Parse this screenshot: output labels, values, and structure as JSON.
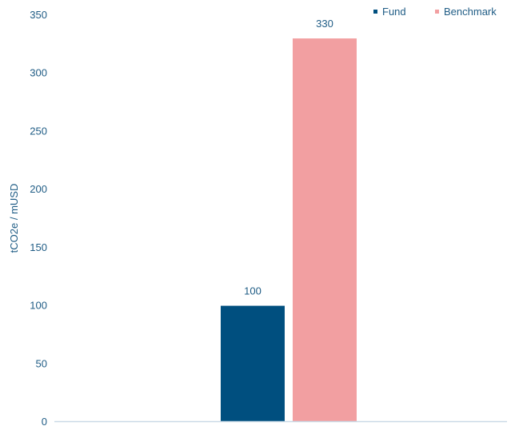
{
  "chart_data": {
    "type": "bar",
    "categories": [
      ""
    ],
    "series": [
      {
        "name": "Fund",
        "values": [
          100
        ],
        "color": "#004F7F"
      },
      {
        "name": "Benchmark",
        "values": [
          330
        ],
        "color": "#F29FA1"
      }
    ],
    "title": "",
    "xlabel": "",
    "ylabel": "tCO2e / mUSD",
    "ylim": [
      0,
      350
    ],
    "yticks": [
      0,
      50,
      100,
      150,
      200,
      250,
      300,
      350
    ],
    "data_labels": [
      "100",
      "330"
    ],
    "grid": false,
    "legend_position": "top-right",
    "text_color": "#1F5C85",
    "axis_color": "#C9D9E6"
  }
}
